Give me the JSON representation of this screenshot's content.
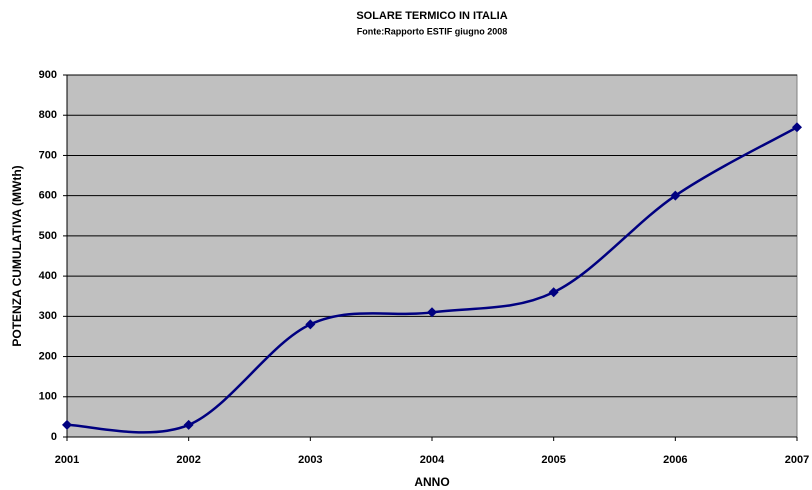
{
  "chart_data": {
    "type": "line",
    "title": "SOLARE TERMICO IN ITALIA",
    "subtitle": "Fonte:Rapporto ESTIF giugno 2008",
    "x_label": "ANNO",
    "y_label": "POTENZA CUMULATIVA (MWth)",
    "categories": [
      "2001",
      "2002",
      "2003",
      "2004",
      "2005",
      "2006",
      "2007"
    ],
    "series": [
      {
        "name": "Potenza cumulativa",
        "color": "#000080",
        "values": [
          30,
          30,
          280,
          310,
          360,
          600,
          770
        ]
      }
    ],
    "ylim": [
      0,
      900
    ],
    "yticks": [
      0,
      100,
      200,
      300,
      400,
      500,
      600,
      700,
      800,
      900
    ],
    "grid": true,
    "smooth": true,
    "plot_background": "#c0c0c0"
  }
}
